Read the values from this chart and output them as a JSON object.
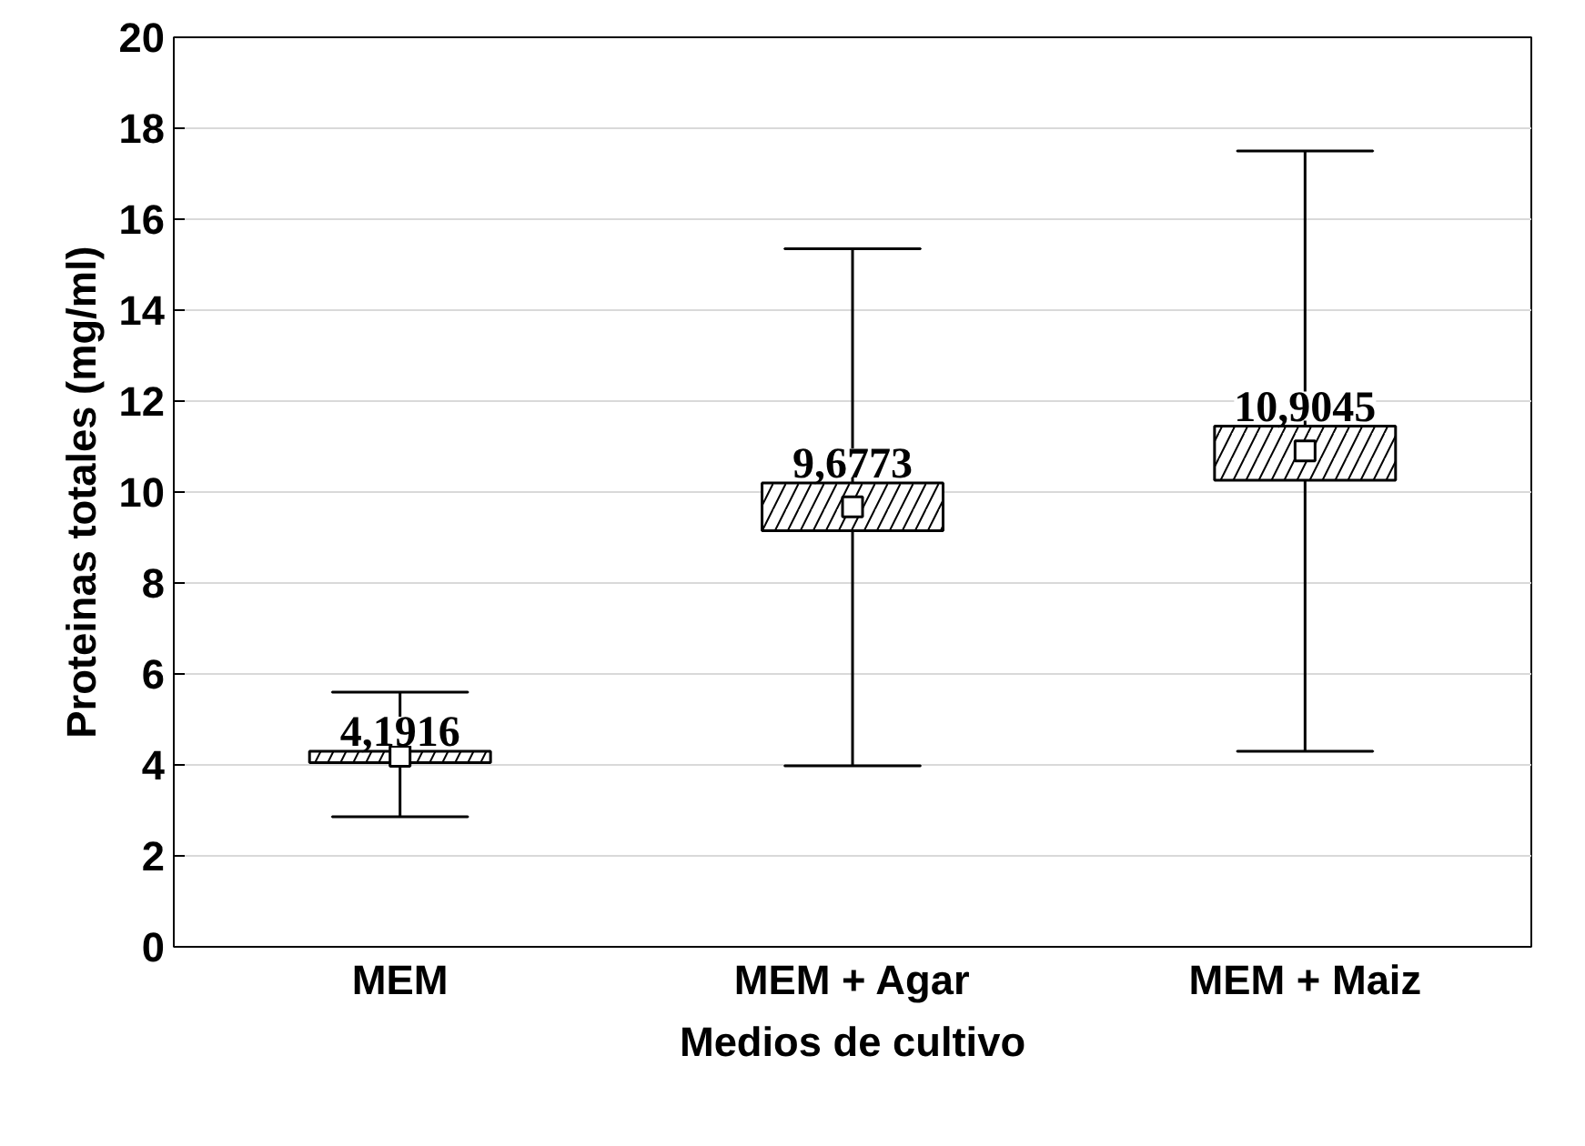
{
  "chart_data": {
    "type": "box",
    "xlabel": "Medios de cultivo",
    "ylabel": "Proteinas totales (mg/ml)",
    "categories": [
      "MEM",
      "MEM + Agar",
      "MEM + Maiz"
    ],
    "boxes": [
      {
        "low": 2.86,
        "q1": 4.05,
        "q3": 4.3,
        "high": 5.6,
        "mean": 4.1916
      },
      {
        "low": 3.98,
        "q1": 9.15,
        "q3": 10.2,
        "high": 15.35,
        "mean": 9.6773
      },
      {
        "low": 4.3,
        "q1": 10.26,
        "q3": 11.45,
        "high": 17.5,
        "mean": 10.9045
      }
    ],
    "value_labels": [
      "4,1916",
      "9,6773",
      "10,9045"
    ],
    "ylim": [
      0,
      20
    ],
    "yticks": [
      0,
      2,
      4,
      6,
      8,
      10,
      12,
      14,
      16,
      18,
      20
    ],
    "grid": "y"
  }
}
